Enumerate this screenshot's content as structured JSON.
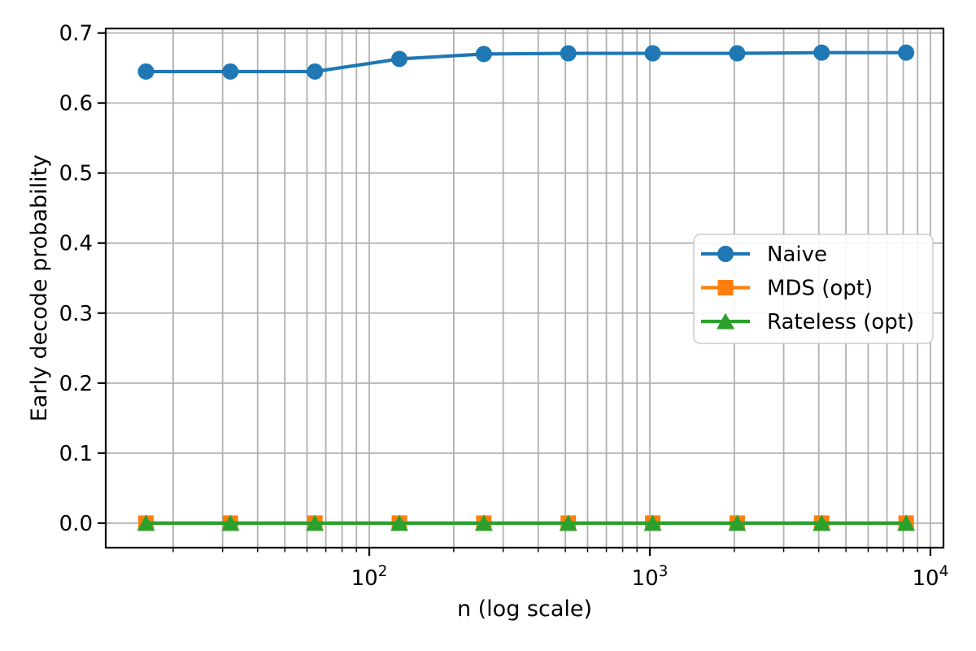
{
  "figure": {
    "background": "#ffffff"
  },
  "chart_data": {
    "type": "line",
    "title": "",
    "xlabel": "n (log scale)",
    "ylabel": "Early decode probability",
    "x_scale": "log",
    "x": [
      16,
      32,
      64,
      128,
      256,
      512,
      1024,
      2048,
      4096,
      8192
    ],
    "series": [
      {
        "name": "Naive",
        "color": "#1f77b4",
        "marker": "circle",
        "values": [
          0.645,
          0.645,
          0.645,
          0.663,
          0.67,
          0.671,
          0.671,
          0.671,
          0.672,
          0.672
        ]
      },
      {
        "name": "MDS (opt)",
        "color": "#ff7f0e",
        "marker": "square",
        "values": [
          0.0,
          0.0,
          0.0,
          0.0,
          0.0,
          0.0,
          0.0,
          0.0,
          0.0,
          0.0
        ]
      },
      {
        "name": "Rateless (opt)",
        "color": "#2ca02c",
        "marker": "triangle",
        "values": [
          0.0,
          0.0,
          0.0,
          0.0,
          0.0,
          0.0,
          0.0,
          0.0,
          0.0,
          0.0
        ]
      }
    ],
    "xlim": [
      11.5,
      11130
    ],
    "ylim": [
      -0.035,
      0.7065
    ],
    "yticks": [
      0.0,
      0.1,
      0.2,
      0.3,
      0.4,
      0.5,
      0.6,
      0.7
    ],
    "xticks_major_exponents": [
      2,
      3,
      4
    ],
    "xtick_base": "10",
    "grid": "both",
    "legend_position": "center right",
    "legend_entries": [
      "Naive",
      "MDS (opt)",
      "Rateless (opt)"
    ],
    "colors": {
      "grid": "#b0b0b0",
      "spine": "#000000",
      "text": "#000000",
      "legend_border": "#cccccc",
      "legend_background": "#ffffff"
    }
  }
}
